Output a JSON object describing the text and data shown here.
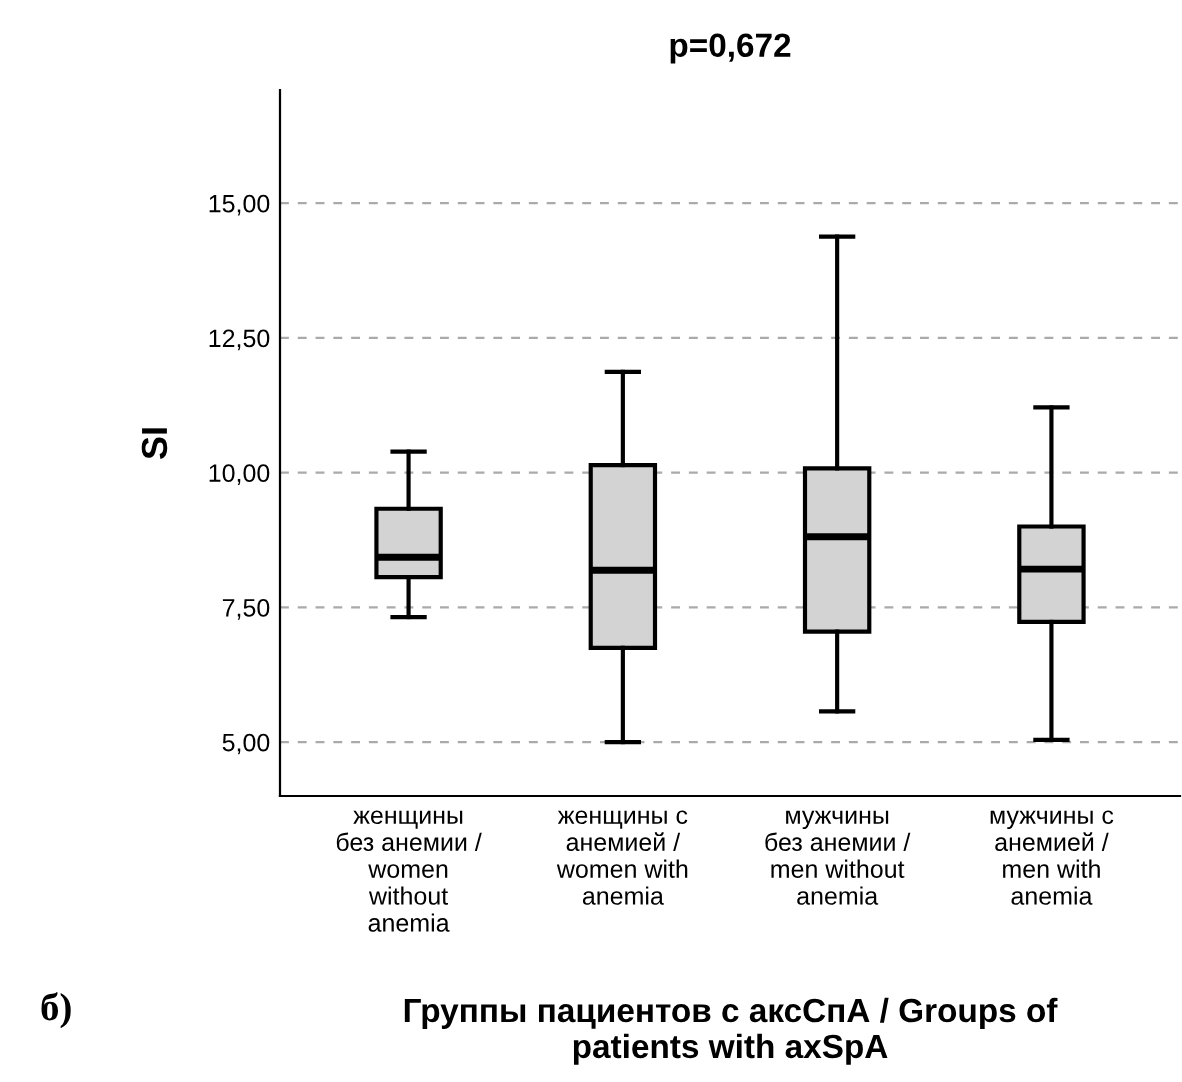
{
  "chart_data": {
    "type": "box",
    "title": "p=0,672",
    "ylabel": "SI",
    "xlabel": "Группы пациентов с аксСпА / Groups of\npatients with axSpA",
    "categories": [
      "женщины\nбез анемии /\nwomen\nwithout\nanemia",
      "женщины с\nанемией /\nwomen with\nanemia",
      "мужчины\nбез анемии /\nmen without\nanemia",
      "мужчины с\nанемией /\nmen with\nanemia"
    ],
    "boxes": [
      {
        "low": 7.32,
        "q1": 8.06,
        "median": 8.43,
        "q3": 9.33,
        "high": 10.39
      },
      {
        "low": 5.0,
        "q1": 6.75,
        "median": 8.19,
        "q3": 10.14,
        "high": 11.87
      },
      {
        "low": 5.57,
        "q1": 7.05,
        "median": 8.81,
        "q3": 10.08,
        "high": 14.38
      },
      {
        "low": 5.04,
        "q1": 7.23,
        "median": 8.21,
        "q3": 9.0,
        "high": 11.21
      }
    ],
    "color": "#d3d3d3",
    "ylim": [
      4.0,
      17.1
    ],
    "yticks": [
      {
        "value": 5,
        "label": "5,00"
      },
      {
        "value": 7.5,
        "label": "7,50"
      },
      {
        "value": 10,
        "label": "10,00"
      },
      {
        "value": 12.5,
        "label": "12,50"
      },
      {
        "value": 15,
        "label": "15,00"
      }
    ],
    "grid": "y",
    "annotations": [
      "б)"
    ]
  }
}
